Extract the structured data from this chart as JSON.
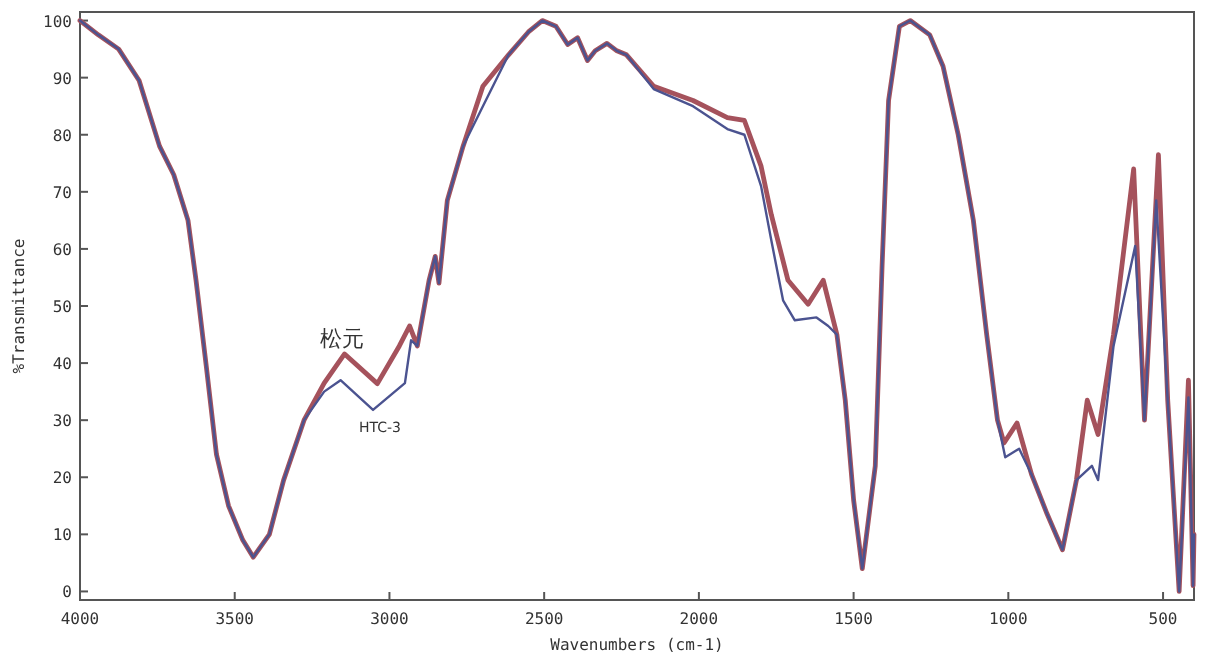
{
  "chart_data": {
    "type": "line",
    "xlabel": "Wavenumbers (cm-1)",
    "ylabel": "%Transmittance",
    "xlim": [
      4000,
      400
    ],
    "ylim": [
      -1.5,
      101.5
    ],
    "xticks": [
      4000,
      3500,
      3000,
      2500,
      2000,
      1500,
      1000,
      500
    ],
    "yticks": [
      0,
      10,
      20,
      30,
      40,
      50,
      60,
      70,
      80,
      90,
      100
    ],
    "grid": false,
    "marker": "none",
    "line_style": "solid",
    "series": [
      {
        "name": "松元",
        "color": "#a5525c",
        "x": [
          4000,
          3941,
          3875,
          3809,
          3743,
          3697,
          3651,
          3625,
          3592,
          3559,
          3520,
          3474,
          3440,
          3388,
          3342,
          3276,
          3211,
          3145,
          3039,
          2968,
          2935,
          2910,
          2872,
          2852,
          2840,
          2813,
          2762,
          2698,
          2615,
          2551,
          2506,
          2462,
          2424,
          2392,
          2360,
          2335,
          2297,
          2265,
          2234,
          2146,
          2019,
          1908,
          1853,
          1799,
          1766,
          1712,
          1647,
          1598,
          1554,
          1527,
          1500,
          1472,
          1430,
          1408,
          1387,
          1352,
          1317,
          1254,
          1211,
          1162,
          1113,
          1070,
          1035,
          1014,
          972,
          925,
          875,
          825,
          780,
          745,
          710,
          660,
          595,
          560,
          515,
          485,
          448,
          418,
          403,
          400
        ],
        "values": [
          100,
          97.5,
          95,
          89.5,
          78,
          73,
          65,
          54.5,
          39.5,
          24,
          15,
          9,
          6,
          10,
          19.5,
          30,
          36.5,
          41.6,
          36.4,
          43,
          46.5,
          43,
          54.5,
          58.7,
          54,
          68.5,
          78,
          88.5,
          94,
          98,
          100,
          99,
          95.8,
          97,
          93,
          94.7,
          96,
          94.7,
          94,
          88.5,
          86,
          83,
          82.5,
          74.5,
          66,
          54.5,
          50.3,
          54.5,
          45,
          33.5,
          16,
          4,
          22,
          57,
          86,
          99,
          100,
          97.5,
          92,
          80,
          65,
          45,
          30,
          26,
          29.5,
          20.5,
          13.6,
          7.3,
          19.5,
          33.5,
          27.5,
          45,
          74,
          30,
          76.5,
          33.5,
          0,
          37,
          1,
          10
        ]
      },
      {
        "name": "HTC-3",
        "color": "#4b5390",
        "x": [
          4000,
          3941,
          3875,
          3809,
          3743,
          3697,
          3651,
          3625,
          3592,
          3559,
          3520,
          3474,
          3440,
          3388,
          3342,
          3276,
          3211,
          3158,
          3053,
          2950,
          2930,
          2910,
          2872,
          2852,
          2840,
          2813,
          2762,
          2698,
          2615,
          2551,
          2506,
          2462,
          2424,
          2392,
          2360,
          2335,
          2297,
          2265,
          2234,
          2146,
          2019,
          1908,
          1853,
          1799,
          1766,
          1728,
          1690,
          1620,
          1582,
          1554,
          1527,
          1500,
          1472,
          1430,
          1408,
          1387,
          1352,
          1317,
          1254,
          1211,
          1162,
          1113,
          1070,
          1035,
          1010,
          965,
          925,
          875,
          825,
          780,
          730,
          710,
          660,
          590,
          560,
          522,
          485,
          448,
          418,
          403,
          400
        ],
        "values": [
          100,
          97.5,
          95,
          89.5,
          78,
          73,
          65,
          54.5,
          39.5,
          24,
          15,
          9,
          6,
          10,
          19.5,
          30,
          35,
          37,
          31.8,
          36.5,
          44,
          43,
          54.5,
          58.7,
          54,
          68.5,
          78,
          85,
          94,
          98,
          100,
          99,
          95.8,
          97,
          93,
          94.7,
          96,
          94.7,
          94,
          88,
          85,
          81,
          80,
          71,
          61.5,
          51,
          47.5,
          48,
          46.5,
          45,
          33.5,
          16,
          4,
          22,
          57,
          86,
          99,
          100,
          97.5,
          92,
          80,
          65,
          45,
          30,
          23.5,
          25,
          20.5,
          13.6,
          7.3,
          19.5,
          22,
          19.5,
          43,
          60.5,
          30,
          68.5,
          33.5,
          0,
          34,
          1,
          10
        ]
      }
    ]
  }
}
